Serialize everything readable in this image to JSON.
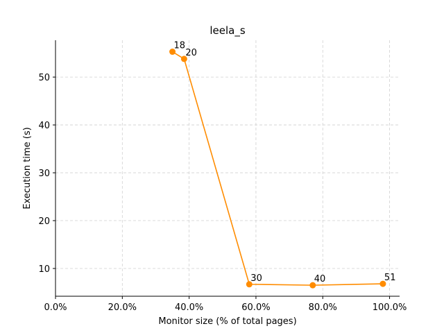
{
  "chart_data": {
    "type": "line",
    "title": "leela_s",
    "xlabel": "Monitor size (% of total pages)",
    "ylabel": "Execution time (s)",
    "xlim": [
      0,
      1.03
    ],
    "ylim": [
      4.2,
      57.7
    ],
    "x_ticks": [
      0,
      0.2,
      0.4,
      0.6,
      0.8,
      1.0
    ],
    "x_tick_labels": [
      "0.0%",
      "20.0%",
      "40.0%",
      "60.0%",
      "80.0%",
      "100.0%"
    ],
    "y_ticks": [
      10,
      20,
      30,
      40,
      50
    ],
    "y_tick_labels": [
      "10",
      "20",
      "30",
      "40",
      "50"
    ],
    "grid": true,
    "color": "#ff8c00",
    "series": [
      {
        "x": [
          0.35,
          0.385,
          0.58,
          0.77,
          0.98
        ],
        "y": [
          55.3,
          53.8,
          6.7,
          6.5,
          6.8
        ],
        "labels": [
          "18",
          "20",
          "30",
          "40",
          "51"
        ]
      }
    ]
  }
}
